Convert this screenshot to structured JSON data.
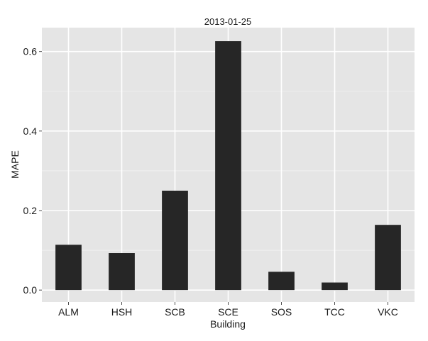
{
  "chart_data": {
    "type": "bar",
    "title": "2013-01-25",
    "xlabel": "Building",
    "ylabel": "MAPE",
    "categories": [
      "ALM",
      "HSH",
      "SCB",
      "SCE",
      "SOS",
      "TCC",
      "VKC"
    ],
    "values": [
      0.114,
      0.093,
      0.25,
      0.626,
      0.046,
      0.019,
      0.164
    ],
    "yticks": [
      "0.0",
      "0.2",
      "0.4",
      "0.6"
    ],
    "ytick_values": [
      0.0,
      0.2,
      0.4,
      0.6
    ],
    "ylim": [
      -0.03,
      0.66
    ],
    "grid": true,
    "colors": {
      "panel": "#e5e5e5",
      "grid_major": "#ffffff",
      "grid_minor": "#f2f2f2",
      "bar": "#262626",
      "text": "#1a1a1a"
    }
  }
}
